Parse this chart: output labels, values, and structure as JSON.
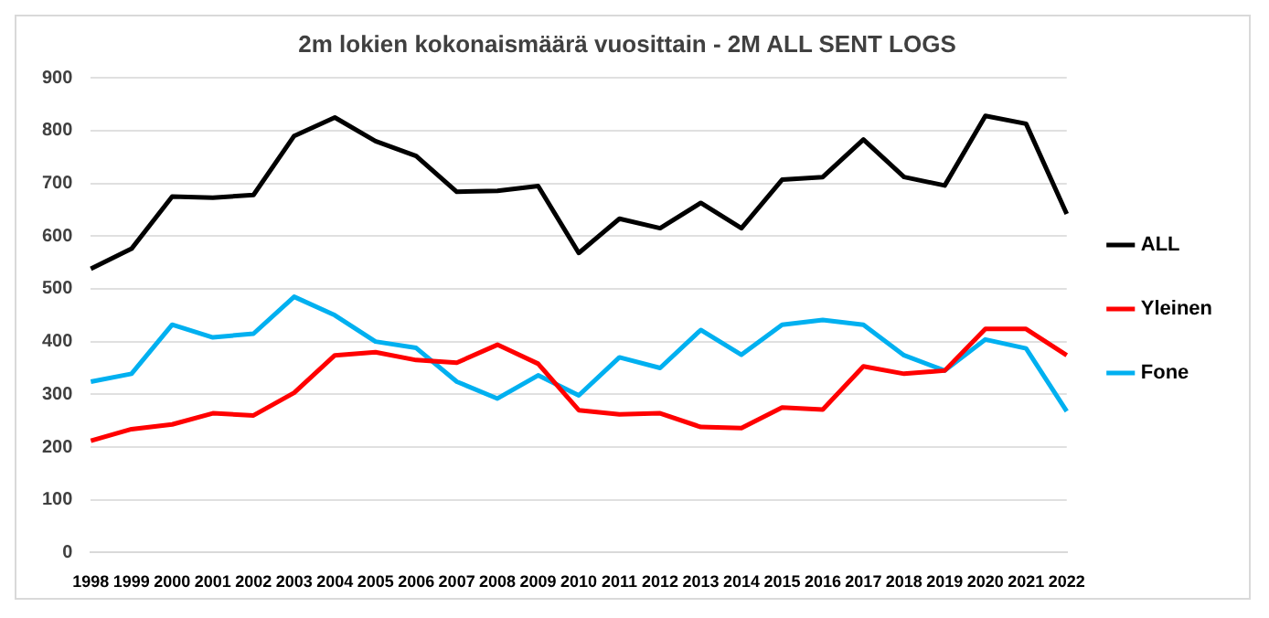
{
  "chart_data": {
    "type": "line",
    "title": "2m lokien kokonaismäärä vuosittain - 2M ALL SENT LOGS",
    "categories": [
      "1998",
      "1999",
      "2000",
      "2001",
      "2002",
      "2003",
      "2004",
      "2005",
      "2006",
      "2007",
      "2008",
      "2009",
      "2010",
      "2011",
      "2012",
      "2013",
      "2014",
      "2015",
      "2016",
      "2017",
      "2018",
      "2019",
      "2020",
      "2021",
      "2022"
    ],
    "series": [
      {
        "name": "ALL",
        "color": "#000000",
        "values": [
          538,
          576,
          675,
          673,
          678,
          790,
          825,
          780,
          752,
          684,
          686,
          695,
          568,
          633,
          615,
          663,
          615,
          707,
          712,
          783,
          712,
          696,
          828,
          813,
          642
        ]
      },
      {
        "name": "Yleinen",
        "color": "#ff0000",
        "values": [
          212,
          234,
          243,
          264,
          260,
          303,
          374,
          380,
          365,
          360,
          394,
          358,
          270,
          262,
          264,
          238,
          236,
          275,
          271,
          353,
          339,
          345,
          424,
          424,
          374
        ]
      },
      {
        "name": "Fone",
        "color": "#00b0f0",
        "values": [
          324,
          339,
          432,
          408,
          415,
          485,
          450,
          400,
          388,
          324,
          292,
          336,
          298,
          370,
          350,
          422,
          375,
          432,
          441,
          432,
          374,
          345,
          404,
          387,
          268
        ]
      }
    ],
    "ylim": [
      0,
      900
    ],
    "yticks": [
      0,
      100,
      200,
      300,
      400,
      500,
      600,
      700,
      800,
      900
    ],
    "grid": "y",
    "legend": "right",
    "marker": "none",
    "line_style": "solid"
  }
}
